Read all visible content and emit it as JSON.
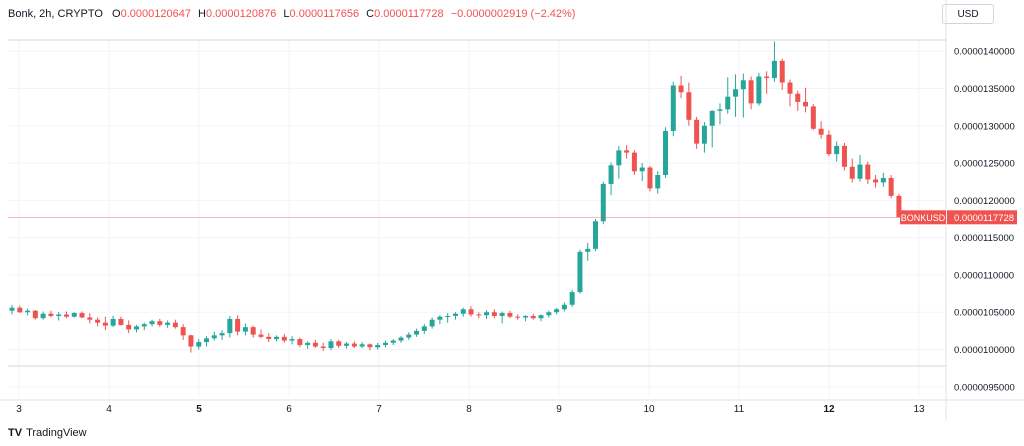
{
  "header": {
    "symbol": "Bonk, 2h, CRYPTO",
    "o_label": "O",
    "o_value": "0.0000120647",
    "h_label": "H",
    "h_value": "0.0000120876",
    "l_label": "L",
    "l_value": "0.0000117656",
    "c_label": "C",
    "c_value": "0.0000117728",
    "change": "−0.0000002919 (−2.42%)"
  },
  "currency": "USD",
  "footer": {
    "brand": "TradingView",
    "logo": "TV"
  },
  "colors": {
    "up": "#26a69a",
    "down": "#ef5350",
    "grid": "#f0f3fa",
    "axis": "#e0e3eb"
  },
  "chart_data": {
    "type": "candlestick",
    "symbol_tag": "BONKUSD",
    "last_price": "0.0000117728",
    "y_ticks": [
      "0.0000140000",
      "0.0000135000",
      "0.0000130000",
      "0.0000125000",
      "0.0000120000",
      "0.0000115000",
      "0.0000110000",
      "0.0000105000",
      "0.0000100000",
      "0.0000095000"
    ],
    "y_tick_values": [
      1.4e-05,
      1.35e-05,
      1.3e-05,
      1.25e-05,
      1.2e-05,
      1.15e-05,
      1.1e-05,
      1.05e-05,
      1e-05,
      9.5e-06
    ],
    "x_ticks": [
      "3",
      "4",
      "5",
      "6",
      "7",
      "8",
      "9",
      "10",
      "11",
      "12",
      "13"
    ],
    "bold_x_ticks": [
      "5",
      "12"
    ],
    "ylim": [
      9.35e-06,
      1.415e-05
    ],
    "candles": [
      [
        105.2,
        106.0,
        104.7,
        105.6
      ],
      [
        105.6,
        105.9,
        104.9,
        105.0
      ],
      [
        105.0,
        105.5,
        104.6,
        105.2
      ],
      [
        105.2,
        105.3,
        104.0,
        104.2
      ],
      [
        104.2,
        105.1,
        104.0,
        104.8
      ],
      [
        104.8,
        105.2,
        104.3,
        104.5
      ],
      [
        104.5,
        105.0,
        103.9,
        104.7
      ],
      [
        104.7,
        105.1,
        104.2,
        104.4
      ],
      [
        104.4,
        105.0,
        104.3,
        104.9
      ],
      [
        104.9,
        105.1,
        104.2,
        104.3
      ],
      [
        104.3,
        104.9,
        103.5,
        104.0
      ],
      [
        104.0,
        104.3,
        103.1,
        103.6
      ],
      [
        103.6,
        104.4,
        102.6,
        103.2
      ],
      [
        103.2,
        104.5,
        103.0,
        104.1
      ],
      [
        104.1,
        104.4,
        103.2,
        103.3
      ],
      [
        103.3,
        103.9,
        102.2,
        102.7
      ],
      [
        102.7,
        103.3,
        102.3,
        103.1
      ],
      [
        103.1,
        103.6,
        102.6,
        103.4
      ],
      [
        103.4,
        104.0,
        103.1,
        103.8
      ],
      [
        103.8,
        104.1,
        103.0,
        103.3
      ],
      [
        103.3,
        103.9,
        102.9,
        103.6
      ],
      [
        103.6,
        104.0,
        102.8,
        103.0
      ],
      [
        103.0,
        103.4,
        101.3,
        101.9
      ],
      [
        101.9,
        102.0,
        99.6,
        100.4
      ],
      [
        100.4,
        101.4,
        100.0,
        101.0
      ],
      [
        101.0,
        101.8,
        100.4,
        101.5
      ],
      [
        101.5,
        102.4,
        101.2,
        101.9
      ],
      [
        101.9,
        102.6,
        101.3,
        102.2
      ],
      [
        102.2,
        104.5,
        101.6,
        104.1
      ],
      [
        104.1,
        104.6,
        101.9,
        102.4
      ],
      [
        102.4,
        103.5,
        101.9,
        103.0
      ],
      [
        103.0,
        103.2,
        101.6,
        102.0
      ],
      [
        102.0,
        102.7,
        101.5,
        101.7
      ],
      [
        101.7,
        102.2,
        101.0,
        101.4
      ],
      [
        101.4,
        101.9,
        101.1,
        101.7
      ],
      [
        101.7,
        102.1,
        100.9,
        101.2
      ],
      [
        101.2,
        101.8,
        100.7,
        101.4
      ],
      [
        101.4,
        101.6,
        100.3,
        100.6
      ],
      [
        100.6,
        101.1,
        100.1,
        100.9
      ],
      [
        100.9,
        101.3,
        100.2,
        100.4
      ],
      [
        100.4,
        100.9,
        99.8,
        100.2
      ],
      [
        100.2,
        101.4,
        99.9,
        101.1
      ],
      [
        101.1,
        101.3,
        100.2,
        100.5
      ],
      [
        100.5,
        101.0,
        100.1,
        100.8
      ],
      [
        100.8,
        101.1,
        100.2,
        100.4
      ],
      [
        100.4,
        101.0,
        100.2,
        100.7
      ],
      [
        100.7,
        100.8,
        99.9,
        100.3
      ],
      [
        100.3,
        100.9,
        100.0,
        100.6
      ],
      [
        100.6,
        101.2,
        100.3,
        100.9
      ],
      [
        100.9,
        101.4,
        100.6,
        101.2
      ],
      [
        101.2,
        101.8,
        100.9,
        101.6
      ],
      [
        101.6,
        102.3,
        101.3,
        102.0
      ],
      [
        102.0,
        102.8,
        101.7,
        102.5
      ],
      [
        102.5,
        103.4,
        102.1,
        103.1
      ],
      [
        103.1,
        104.3,
        102.8,
        104.0
      ],
      [
        104.0,
        104.6,
        103.4,
        104.4
      ],
      [
        104.4,
        104.9,
        103.6,
        104.5
      ],
      [
        104.5,
        105.0,
        104.0,
        104.8
      ],
      [
        104.8,
        105.6,
        104.4,
        105.4
      ],
      [
        105.4,
        105.8,
        104.4,
        104.7
      ],
      [
        104.7,
        105.0,
        104.2,
        104.6
      ],
      [
        104.6,
        105.3,
        104.1,
        105.0
      ],
      [
        105.0,
        105.4,
        104.2,
        104.5
      ],
      [
        104.5,
        105.1,
        103.5,
        104.9
      ],
      [
        104.9,
        105.2,
        104.2,
        104.4
      ],
      [
        104.4,
        104.7,
        104.0,
        104.3
      ],
      [
        104.3,
        104.6,
        103.8,
        104.5
      ],
      [
        104.5,
        104.8,
        104.0,
        104.2
      ],
      [
        104.2,
        104.7,
        103.8,
        104.6
      ],
      [
        104.6,
        105.2,
        104.3,
        105.0
      ],
      [
        105.0,
        105.6,
        104.7,
        105.4
      ],
      [
        105.4,
        106.3,
        105.1,
        106.0
      ],
      [
        106.0,
        108.0,
        105.7,
        107.7
      ],
      [
        107.7,
        113.4,
        107.5,
        113.1
      ],
      [
        113.1,
        114.3,
        111.9,
        113.5
      ],
      [
        113.5,
        117.5,
        113.2,
        117.2
      ],
      [
        117.2,
        122.5,
        116.8,
        122.2
      ],
      [
        122.2,
        125.1,
        120.7,
        124.7
      ],
      [
        124.7,
        127.3,
        122.9,
        126.7
      ],
      [
        126.7,
        127.4,
        125.6,
        126.4
      ],
      [
        126.4,
        126.7,
        123.4,
        123.9
      ],
      [
        123.9,
        125.0,
        122.6,
        124.4
      ],
      [
        124.4,
        124.6,
        121.2,
        121.6
      ],
      [
        121.6,
        123.9,
        120.9,
        123.4
      ],
      [
        123.4,
        129.8,
        123.0,
        129.3
      ],
      [
        129.3,
        135.9,
        128.6,
        135.4
      ],
      [
        135.4,
        136.7,
        133.7,
        134.5
      ],
      [
        134.5,
        135.8,
        130.0,
        130.8
      ],
      [
        130.8,
        131.2,
        126.9,
        127.6
      ],
      [
        127.6,
        130.5,
        126.4,
        130.0
      ],
      [
        130.0,
        132.1,
        127.1,
        132.0
      ],
      [
        132.0,
        133.0,
        130.2,
        132.2
      ],
      [
        132.2,
        136.5,
        131.6,
        133.9
      ],
      [
        133.9,
        136.9,
        131.2,
        134.9
      ],
      [
        134.9,
        137.0,
        131.1,
        136.1
      ],
      [
        136.1,
        136.6,
        132.2,
        133.0
      ],
      [
        133.0,
        137.1,
        132.7,
        136.6
      ],
      [
        136.6,
        137.3,
        134.3,
        136.4
      ],
      [
        136.4,
        141.3,
        135.9,
        138.7
      ],
      [
        138.7,
        139.0,
        134.8,
        135.8
      ],
      [
        135.8,
        136.2,
        132.6,
        134.3
      ],
      [
        134.3,
        134.7,
        132.0,
        133.2
      ],
      [
        133.2,
        135.1,
        131.8,
        132.6
      ],
      [
        132.6,
        132.9,
        129.4,
        129.6
      ],
      [
        129.6,
        130.6,
        128.3,
        128.8
      ],
      [
        128.8,
        129.4,
        125.9,
        126.2
      ],
      [
        126.2,
        127.9,
        125.2,
        127.3
      ],
      [
        127.3,
        127.7,
        124.0,
        124.5
      ],
      [
        124.5,
        125.6,
        122.4,
        122.9
      ],
      [
        122.9,
        126.1,
        122.5,
        124.8
      ],
      [
        124.8,
        125.2,
        122.2,
        122.8
      ],
      [
        122.8,
        123.4,
        121.7,
        122.4
      ],
      [
        122.4,
        123.7,
        121.8,
        123.0
      ],
      [
        123.0,
        123.4,
        120.3,
        120.6
      ],
      [
        120.6,
        120.9,
        117.7,
        117.7
      ]
    ]
  }
}
